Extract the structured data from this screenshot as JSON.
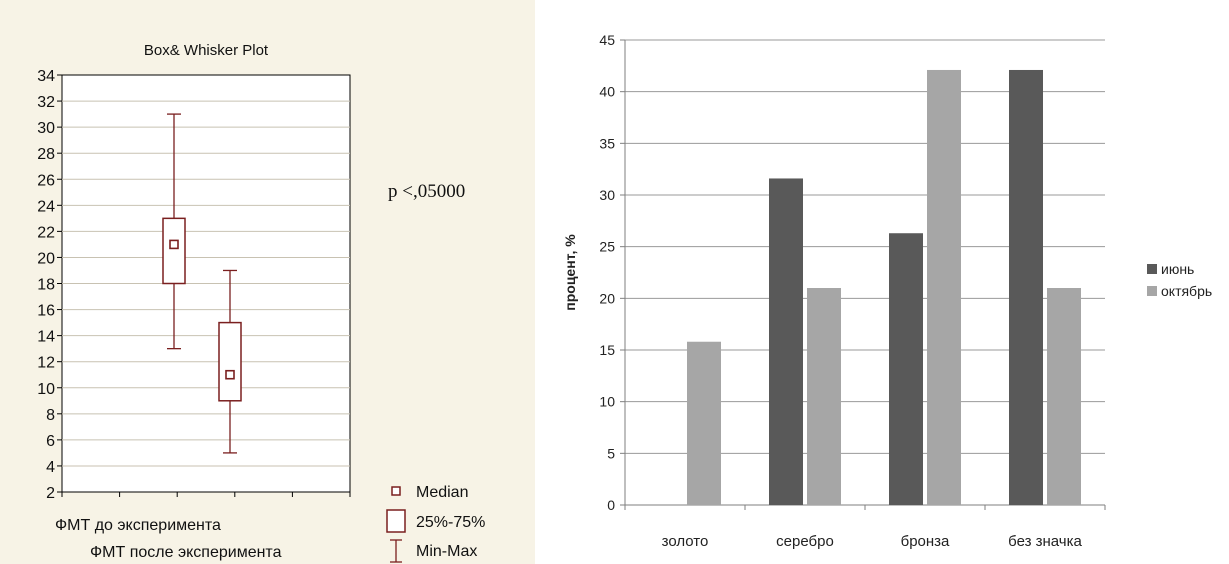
{
  "chart_data": [
    {
      "type": "box",
      "title": "Box& Whisker Plot",
      "annotation": "p <,05000",
      "ylim": [
        2,
        34
      ],
      "y_ticks": [
        2,
        4,
        6,
        8,
        10,
        12,
        14,
        16,
        18,
        20,
        22,
        24,
        26,
        28,
        30,
        32,
        34
      ],
      "grid": true,
      "categories": [
        "ФМТ до эксперимента",
        "ФМТ после эксперимента"
      ],
      "boxes": [
        {
          "median": 21,
          "q1": 18,
          "q3": 23,
          "min": 13,
          "max": 31
        },
        {
          "median": 11,
          "q1": 9,
          "q3": 15,
          "min": 5,
          "max": 19
        }
      ],
      "legend": {
        "position": "bottom-right",
        "items": [
          "Median",
          "25%-75%",
          "Min-Max"
        ]
      },
      "colors": {
        "box": "#7a1f1f",
        "background": "#f7f3e6",
        "grid": "#c8c2b2"
      }
    },
    {
      "type": "bar",
      "categories": [
        "золото",
        "серебро",
        "бронза",
        "без значка"
      ],
      "ylabel": "процент, %",
      "ylim": [
        0,
        45
      ],
      "y_ticks": [
        0,
        5,
        10,
        15,
        20,
        25,
        30,
        35,
        40,
        45
      ],
      "grid": true,
      "series": [
        {
          "name": "июнь",
          "values": [
            0,
            31.6,
            26.3,
            42.1
          ],
          "color": "#595959"
        },
        {
          "name": "октябрь",
          "values": [
            15.8,
            21.0,
            42.1,
            21.0
          ],
          "color": "#a6a6a6"
        }
      ],
      "legend": {
        "position": "right"
      }
    }
  ]
}
